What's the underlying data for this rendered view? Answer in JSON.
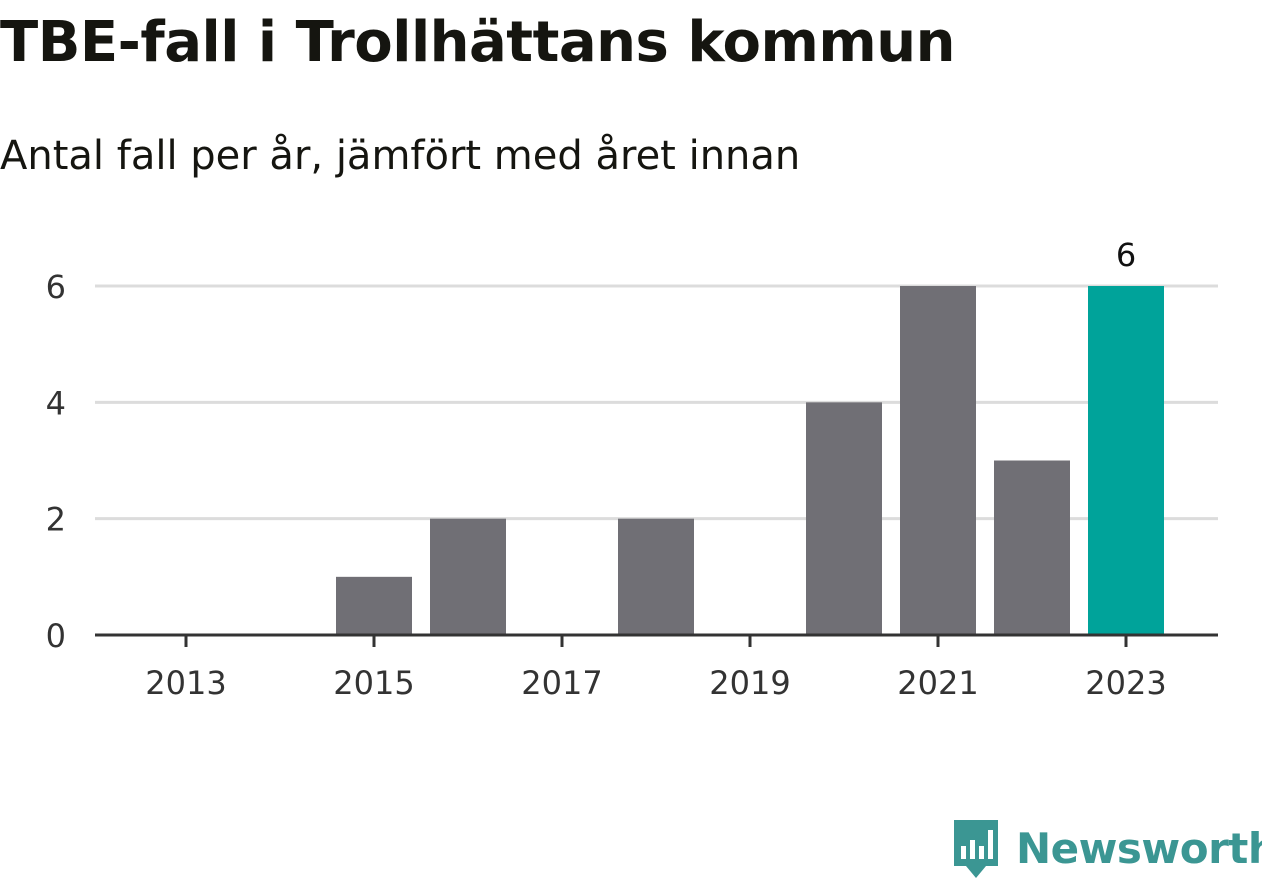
{
  "header": {
    "title": "TBE-fall i Trollhättans kommun",
    "subtitle": "Antal fall per år, jämfört med året innan"
  },
  "branding": {
    "name": "Newsworthy",
    "logo_icon": "bar-chart-speech-bubble-icon",
    "color": "#3b9693"
  },
  "colors": {
    "bar": "#706f75",
    "highlight": "#00a39a",
    "grid": "#dcdcdc",
    "axis": "#333333"
  },
  "chart_data": {
    "type": "bar",
    "categories": [
      "2013",
      "2014",
      "2015",
      "2016",
      "2017",
      "2018",
      "2019",
      "2020",
      "2021",
      "2022",
      "2023"
    ],
    "values": [
      0,
      0,
      1,
      2,
      0,
      2,
      0,
      4,
      6,
      3,
      6
    ],
    "highlight_category": "2023",
    "data_labels": [
      {
        "category": "2023",
        "text": "6"
      }
    ],
    "x_tick_labels": [
      "2013",
      "2015",
      "2017",
      "2019",
      "2021",
      "2023"
    ],
    "y_ticks": [
      0,
      2,
      4,
      6
    ],
    "ylim": [
      0,
      6
    ],
    "grid": true,
    "legend": "none"
  }
}
